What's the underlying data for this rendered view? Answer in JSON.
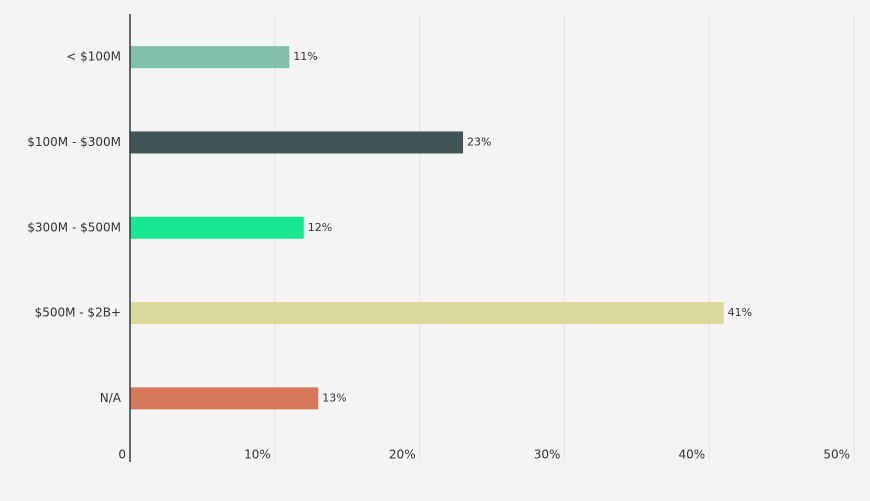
{
  "chart_data": {
    "type": "hbar",
    "categories": [
      "< $100M",
      "$100M - $300M",
      "$300M - $500M",
      "$500M - $2B+",
      "N/A"
    ],
    "values": [
      11,
      23,
      12,
      41,
      13
    ],
    "value_labels": [
      "11%",
      "23%",
      "12%",
      "41%",
      "13%"
    ],
    "colors": [
      "#82bfad",
      "#425556",
      "#17e88f",
      "#dbd99c",
      "#d6785a"
    ],
    "xlim": [
      0,
      50
    ],
    "xticks": [
      0,
      {
        "value": 10,
        "label": "10%"
      },
      {
        "value": 20,
        "label": "20%"
      },
      {
        "value": 30,
        "label": "30%"
      },
      {
        "value": 40,
        "label": "40%"
      },
      {
        "value": 50,
        "label": "50%"
      }
    ],
    "grid": true
  }
}
